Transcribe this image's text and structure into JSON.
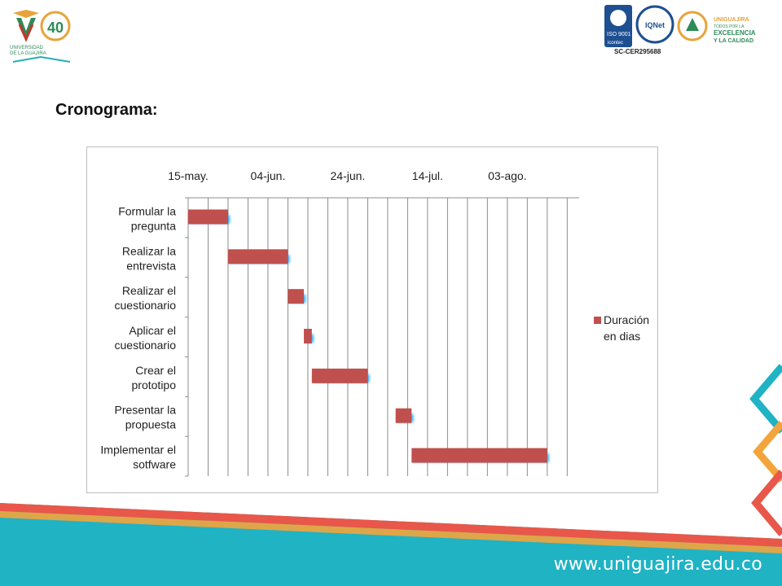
{
  "header": {
    "left_logo_text": [
      "UNIVERSIDAD",
      "DE LA GUAJIRA",
      "40"
    ],
    "right_logo_texts": [
      "ISO 9001",
      "icontec",
      "IQNet",
      "SC-CER295688",
      "UNIGUAJIRA",
      "TODOS POR LA",
      "EXCELENCIA",
      "Y LA CALIDAD"
    ],
    "cert_code": "SC-CER295688"
  },
  "page": {
    "title": "Cronograma:"
  },
  "chart_data": {
    "type": "bar",
    "orientation": "horizontal-gantt",
    "categories": [
      [
        "Formular la",
        "pregunta"
      ],
      [
        "Realizar la",
        "entrevista"
      ],
      [
        "Realizar  el",
        "cuestionario"
      ],
      [
        "Aplicar el",
        "cuestionario"
      ],
      [
        "Crear el",
        "prototipo"
      ],
      [
        "Presentar la",
        "propuesta"
      ],
      [
        "Implementar el",
        "sotfware"
      ]
    ],
    "x_ticks": [
      "15-may.",
      "04-jun.",
      "24-jun.",
      "14-jul.",
      "03-ago."
    ],
    "xlim": [
      "2012-05-15",
      "2012-08-21"
    ],
    "grid": true,
    "legend_position": "right",
    "series": [
      {
        "name": "Duración en dias",
        "color": "#c0504d",
        "start": [
          "2012-05-15",
          "2012-05-25",
          "2012-06-09",
          "2012-06-13",
          "2012-06-15",
          "2012-07-06",
          "2012-07-10"
        ],
        "values": [
          10,
          15,
          4,
          2,
          14,
          4,
          34
        ]
      }
    ],
    "legend_label_lines": [
      "Duración",
      "en dias"
    ]
  },
  "footer": {
    "url": "www.uniguajira.edu.co"
  }
}
